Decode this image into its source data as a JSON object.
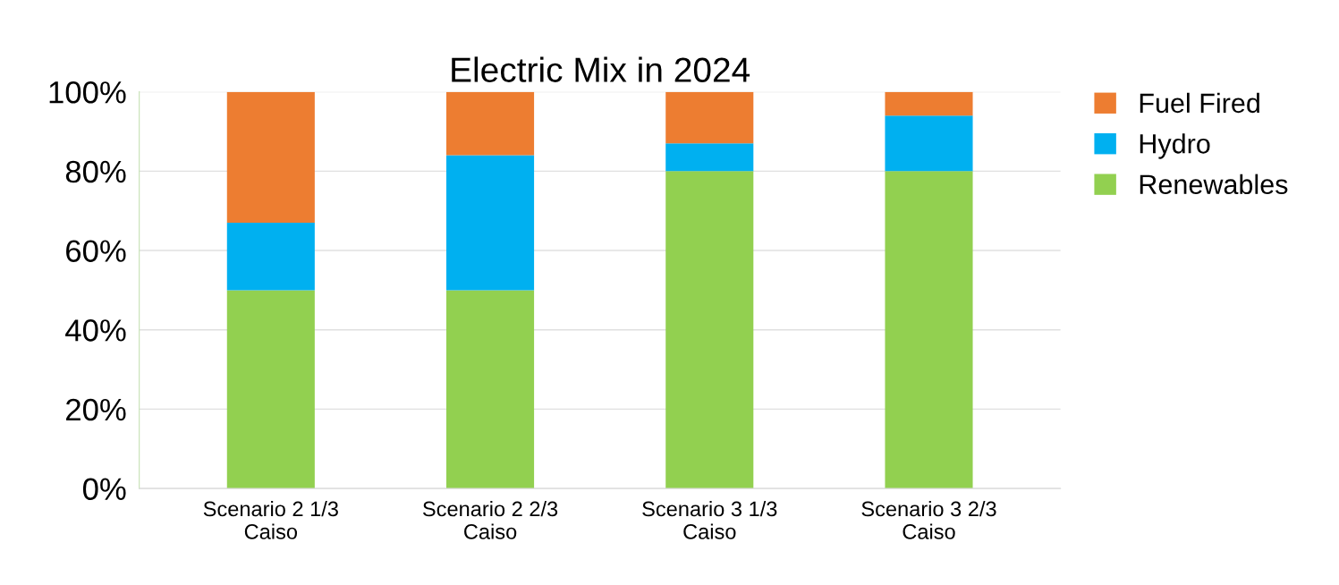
{
  "chart_data": {
    "type": "bar",
    "title": "Electric Mix in 2024",
    "categories": [
      "Scenario 2 1/3\nCaiso",
      "Scenario 2 2/3\nCaiso",
      "Scenario 3 1/3\nCaiso",
      "Scenario 3 2/3\nCaiso"
    ],
    "stacked": true,
    "series": [
      {
        "name": "Renewables",
        "color": "#92d050",
        "values": [
          50,
          50,
          80,
          80
        ]
      },
      {
        "name": "Hydro",
        "color": "#00b0f0",
        "values": [
          17,
          34,
          7,
          14
        ]
      },
      {
        "name": "Fuel Fired",
        "color": "#ed7d31",
        "values": [
          33,
          16,
          13,
          6
        ]
      }
    ],
    "ylim": [
      0,
      100
    ],
    "yticks": [
      {
        "value": 0,
        "label": "0%"
      },
      {
        "value": 20,
        "label": "20%"
      },
      {
        "value": 40,
        "label": "40%"
      },
      {
        "value": 60,
        "label": "60%"
      },
      {
        "value": 80,
        "label": "80%"
      },
      {
        "value": 100,
        "label": "100%"
      }
    ],
    "grid": "y",
    "legend": "top right"
  }
}
